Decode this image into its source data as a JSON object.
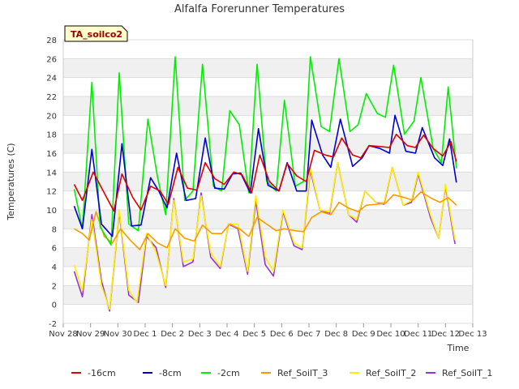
{
  "chart_data": {
    "type": "line",
    "title": "Alfalfa Forerunner Temperatures",
    "xlabel": "Time",
    "ylabel": "Temperatures (C)",
    "site_label": "TA_soilco2",
    "ylim": [
      -2,
      28
    ],
    "yticks": [
      -2,
      0,
      2,
      4,
      6,
      8,
      10,
      12,
      14,
      16,
      18,
      20,
      22,
      24,
      26,
      28
    ],
    "xlim": [
      0,
      15
    ],
    "xticks": [
      {
        "x": 0,
        "label": "Nov 28"
      },
      {
        "x": 1,
        "label": "Nov 29"
      },
      {
        "x": 2,
        "label": "Nov 30"
      },
      {
        "x": 3,
        "label": "Dec 1"
      },
      {
        "x": 4,
        "label": "Dec 2"
      },
      {
        "x": 5,
        "label": "Dec 3"
      },
      {
        "x": 6,
        "label": "Dec 4"
      },
      {
        "x": 7,
        "label": "Dec 5"
      },
      {
        "x": 8,
        "label": "Dec 6"
      },
      {
        "x": 9,
        "label": "Dec 7"
      },
      {
        "x": 10,
        "label": "Dec 8"
      },
      {
        "x": 11,
        "label": "Dec 9"
      },
      {
        "x": 12,
        "label": "Dec 10"
      },
      {
        "x": 13,
        "label": "Dec 11"
      },
      {
        "x": 14,
        "label": "Dec 12"
      },
      {
        "x": 15,
        "label": "Dec 13"
      }
    ],
    "grid": "horizontal bands",
    "legend_position": "bottom",
    "series": [
      {
        "name": "-16cm",
        "color": "#dd0000",
        "points": [
          [
            0.4,
            12.7
          ],
          [
            0.7,
            11.0
          ],
          [
            1.1,
            14.0
          ],
          [
            1.5,
            11.8
          ],
          [
            1.85,
            9.9
          ],
          [
            2.15,
            13.8
          ],
          [
            2.55,
            11.3
          ],
          [
            2.85,
            10.0
          ],
          [
            3.2,
            12.5
          ],
          [
            3.55,
            12.0
          ],
          [
            3.85,
            10.6
          ],
          [
            4.2,
            14.5
          ],
          [
            4.55,
            12.3
          ],
          [
            4.9,
            12.1
          ],
          [
            5.2,
            15.0
          ],
          [
            5.55,
            13.3
          ],
          [
            5.9,
            12.7
          ],
          [
            6.25,
            14.0
          ],
          [
            6.55,
            13.7
          ],
          [
            6.9,
            11.8
          ],
          [
            7.2,
            15.8
          ],
          [
            7.55,
            13.0
          ],
          [
            7.9,
            12.0
          ],
          [
            8.2,
            14.9
          ],
          [
            8.55,
            13.6
          ],
          [
            8.9,
            13.0
          ],
          [
            9.2,
            16.3
          ],
          [
            9.6,
            15.8
          ],
          [
            9.9,
            15.6
          ],
          [
            10.2,
            17.6
          ],
          [
            10.6,
            15.8
          ],
          [
            10.9,
            15.5
          ],
          [
            11.2,
            16.8
          ],
          [
            11.6,
            16.7
          ],
          [
            11.95,
            16.6
          ],
          [
            12.2,
            18.0
          ],
          [
            12.6,
            16.8
          ],
          [
            12.9,
            16.6
          ],
          [
            13.2,
            17.9
          ],
          [
            13.55,
            16.5
          ],
          [
            13.9,
            15.7
          ],
          [
            14.2,
            17.2
          ],
          [
            14.4,
            15.1
          ]
        ]
      },
      {
        "name": "-8cm",
        "color": "#0000cc",
        "points": [
          [
            0.4,
            10.4
          ],
          [
            0.7,
            8.0
          ],
          [
            1.05,
            16.4
          ],
          [
            1.4,
            8.5
          ],
          [
            1.8,
            7.2
          ],
          [
            2.15,
            17.0
          ],
          [
            2.5,
            8.3
          ],
          [
            2.85,
            8.4
          ],
          [
            3.2,
            13.4
          ],
          [
            3.5,
            12.0
          ],
          [
            3.8,
            10.2
          ],
          [
            4.15,
            16.0
          ],
          [
            4.5,
            11.0
          ],
          [
            4.85,
            11.2
          ],
          [
            5.2,
            17.6
          ],
          [
            5.55,
            12.3
          ],
          [
            5.9,
            12.2
          ],
          [
            6.2,
            13.8
          ],
          [
            6.5,
            13.9
          ],
          [
            6.85,
            11.8
          ],
          [
            7.15,
            18.6
          ],
          [
            7.5,
            12.6
          ],
          [
            7.9,
            12.0
          ],
          [
            8.2,
            15.0
          ],
          [
            8.55,
            12.0
          ],
          [
            8.9,
            12.0
          ],
          [
            9.1,
            19.5
          ],
          [
            9.5,
            15.8
          ],
          [
            9.8,
            14.5
          ],
          [
            10.15,
            19.6
          ],
          [
            10.6,
            14.6
          ],
          [
            10.95,
            15.5
          ],
          [
            11.2,
            16.8
          ],
          [
            11.6,
            16.5
          ],
          [
            11.95,
            16.0
          ],
          [
            12.15,
            20.0
          ],
          [
            12.55,
            16.2
          ],
          [
            12.9,
            16.0
          ],
          [
            13.15,
            18.7
          ],
          [
            13.6,
            15.5
          ],
          [
            13.9,
            14.7
          ],
          [
            14.15,
            17.5
          ],
          [
            14.4,
            12.9
          ]
        ]
      },
      {
        "name": "-2cm",
        "color": "#00ee00",
        "points": [
          [
            0.4,
            12.2
          ],
          [
            0.7,
            8.0
          ],
          [
            1.05,
            23.5
          ],
          [
            1.35,
            8.2
          ],
          [
            1.75,
            6.3
          ],
          [
            2.05,
            24.5
          ],
          [
            2.4,
            8.5
          ],
          [
            2.75,
            7.8
          ],
          [
            3.1,
            19.6
          ],
          [
            3.45,
            13.5
          ],
          [
            3.75,
            9.5
          ],
          [
            4.1,
            26.2
          ],
          [
            4.45,
            11.0
          ],
          [
            4.75,
            12.0
          ],
          [
            5.1,
            25.4
          ],
          [
            5.5,
            12.5
          ],
          [
            5.8,
            12.0
          ],
          [
            6.1,
            20.5
          ],
          [
            6.45,
            19.0
          ],
          [
            6.8,
            11.8
          ],
          [
            7.1,
            25.4
          ],
          [
            7.45,
            13.0
          ],
          [
            7.8,
            12.0
          ],
          [
            8.1,
            21.6
          ],
          [
            8.5,
            12.5
          ],
          [
            8.8,
            13.0
          ],
          [
            9.05,
            26.2
          ],
          [
            9.45,
            18.8
          ],
          [
            9.75,
            18.3
          ],
          [
            10.1,
            26.0
          ],
          [
            10.5,
            18.3
          ],
          [
            10.8,
            19.0
          ],
          [
            11.1,
            22.3
          ],
          [
            11.5,
            20.2
          ],
          [
            11.8,
            19.8
          ],
          [
            12.1,
            25.3
          ],
          [
            12.5,
            18.0
          ],
          [
            12.85,
            19.4
          ],
          [
            13.1,
            24.0
          ],
          [
            13.55,
            16.5
          ],
          [
            13.85,
            15.0
          ],
          [
            14.1,
            23.0
          ],
          [
            14.4,
            14.4
          ]
        ]
      },
      {
        "name": "Ref_SoilT_3",
        "color": "#ff9900",
        "points": [
          [
            0.4,
            8.0
          ],
          [
            0.7,
            7.5
          ],
          [
            0.95,
            6.8
          ],
          [
            1.2,
            9.8
          ],
          [
            1.5,
            7.2
          ],
          [
            1.8,
            6.5
          ],
          [
            2.1,
            8.0
          ],
          [
            2.45,
            6.8
          ],
          [
            2.8,
            5.8
          ],
          [
            3.1,
            7.5
          ],
          [
            3.45,
            6.5
          ],
          [
            3.8,
            6.0
          ],
          [
            4.1,
            8.0
          ],
          [
            4.45,
            7.0
          ],
          [
            4.8,
            6.7
          ],
          [
            5.1,
            8.4
          ],
          [
            5.45,
            7.5
          ],
          [
            5.8,
            7.5
          ],
          [
            6.1,
            8.5
          ],
          [
            6.45,
            8.0
          ],
          [
            6.8,
            7.2
          ],
          [
            7.1,
            9.2
          ],
          [
            7.45,
            8.5
          ],
          [
            7.8,
            7.8
          ],
          [
            8.1,
            8.0
          ],
          [
            8.5,
            7.8
          ],
          [
            8.8,
            7.7
          ],
          [
            9.1,
            9.2
          ],
          [
            9.45,
            9.8
          ],
          [
            9.8,
            9.5
          ],
          [
            10.1,
            10.8
          ],
          [
            10.45,
            10.2
          ],
          [
            10.8,
            9.8
          ],
          [
            11.1,
            10.5
          ],
          [
            11.5,
            10.6
          ],
          [
            11.8,
            10.7
          ],
          [
            12.1,
            11.6
          ],
          [
            12.5,
            11.3
          ],
          [
            12.8,
            11.0
          ],
          [
            13.1,
            11.9
          ],
          [
            13.5,
            11.2
          ],
          [
            13.8,
            10.8
          ],
          [
            14.1,
            11.3
          ],
          [
            14.4,
            10.5
          ]
        ]
      },
      {
        "name": "Ref_SoilT_2",
        "color": "#ffee00",
        "points": [
          [
            0.4,
            4.2
          ],
          [
            0.7,
            1.5
          ],
          [
            1.05,
            9.0
          ],
          [
            1.4,
            2.0
          ],
          [
            1.7,
            -0.5
          ],
          [
            2.05,
            10.0
          ],
          [
            2.4,
            1.5
          ],
          [
            2.7,
            0.2
          ],
          [
            3.05,
            7.5
          ],
          [
            3.4,
            5.5
          ],
          [
            3.75,
            2.0
          ],
          [
            4.05,
            11.0
          ],
          [
            4.4,
            4.5
          ],
          [
            4.75,
            4.8
          ],
          [
            5.05,
            11.5
          ],
          [
            5.4,
            5.5
          ],
          [
            5.75,
            4.0
          ],
          [
            6.05,
            8.5
          ],
          [
            6.4,
            8.5
          ],
          [
            6.75,
            3.5
          ],
          [
            7.05,
            11.5
          ],
          [
            7.4,
            5.0
          ],
          [
            7.7,
            3.5
          ],
          [
            8.05,
            10.0
          ],
          [
            8.45,
            6.5
          ],
          [
            8.75,
            6.0
          ],
          [
            9.05,
            14.5
          ],
          [
            9.4,
            10.0
          ],
          [
            9.75,
            9.8
          ],
          [
            10.05,
            15.0
          ],
          [
            10.45,
            9.5
          ],
          [
            10.75,
            9.0
          ],
          [
            11.05,
            12.0
          ],
          [
            11.45,
            10.8
          ],
          [
            11.75,
            10.8
          ],
          [
            12.05,
            14.5
          ],
          [
            12.45,
            10.5
          ],
          [
            12.75,
            11.0
          ],
          [
            13.0,
            14.0
          ],
          [
            13.45,
            9.5
          ],
          [
            13.75,
            7.0
          ],
          [
            14.0,
            12.7
          ],
          [
            14.35,
            6.8
          ]
        ]
      },
      {
        "name": "Ref_SoilT_1",
        "color": "#9933cc",
        "points": [
          [
            0.4,
            3.5
          ],
          [
            0.7,
            0.8
          ],
          [
            1.05,
            9.5
          ],
          [
            1.4,
            2.5
          ],
          [
            1.7,
            -0.7
          ],
          [
            2.05,
            9.8
          ],
          [
            2.4,
            1.0
          ],
          [
            2.75,
            0.2
          ],
          [
            3.05,
            7.2
          ],
          [
            3.4,
            6.0
          ],
          [
            3.75,
            1.8
          ],
          [
            4.05,
            11.2
          ],
          [
            4.4,
            4.0
          ],
          [
            4.75,
            4.5
          ],
          [
            5.05,
            11.8
          ],
          [
            5.4,
            5.0
          ],
          [
            5.75,
            3.8
          ],
          [
            6.05,
            8.5
          ],
          [
            6.4,
            8.0
          ],
          [
            6.75,
            3.2
          ],
          [
            7.05,
            11.0
          ],
          [
            7.4,
            4.2
          ],
          [
            7.7,
            3.0
          ],
          [
            8.05,
            9.8
          ],
          [
            8.45,
            6.2
          ],
          [
            8.75,
            5.8
          ],
          [
            9.05,
            14.2
          ],
          [
            9.4,
            10.0
          ],
          [
            9.75,
            9.6
          ],
          [
            10.05,
            15.0
          ],
          [
            10.45,
            9.5
          ],
          [
            10.75,
            8.7
          ],
          [
            11.05,
            12.0
          ],
          [
            11.45,
            10.8
          ],
          [
            11.75,
            10.6
          ],
          [
            12.05,
            14.5
          ],
          [
            12.45,
            10.5
          ],
          [
            12.75,
            10.8
          ],
          [
            13.0,
            13.8
          ],
          [
            13.45,
            9.2
          ],
          [
            13.75,
            7.0
          ],
          [
            14.0,
            12.5
          ],
          [
            14.35,
            6.4
          ]
        ]
      }
    ]
  }
}
